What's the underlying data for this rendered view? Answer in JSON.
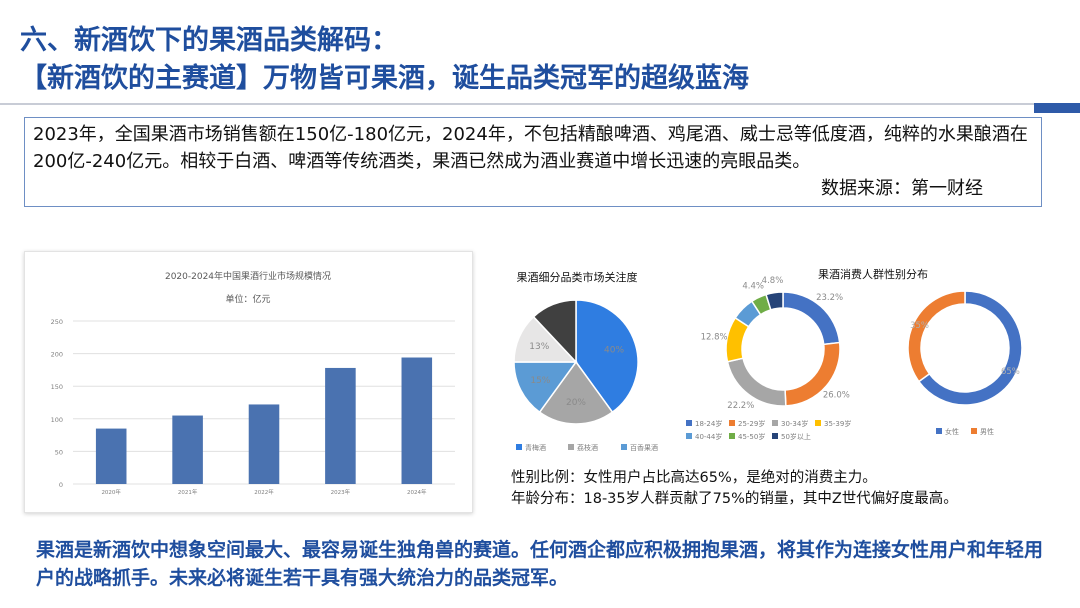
{
  "header": {
    "title_line1": "六、新酒饮下的果酒品类解码：",
    "title_line2": "【新酒饮的主赛道】万物皆可果酒，诞生品类冠军的超级蓝海"
  },
  "intro": {
    "text": "2023年，全国果酒市场销售额在150亿-180亿元，2024年，不包括精酿啤酒、鸡尾酒、威士忌等低度酒，纯粹的水果酿酒在200亿-240亿元。相较于白酒、啤酒等传统酒类，果酒已然成为酒业赛道中增长迅速的亮眼品类。",
    "source": "数据来源：第一财经"
  },
  "notes": {
    "gender": "性别比例：女性用户占比高达65%，是绝对的消费主力。",
    "age": "年龄分布：18-35岁人群贡献了75%的销量，其中Z世代偏好度最高。"
  },
  "conclusion": {
    "text": "果酒是新酒饮中想象空间最大、最容易诞生独角兽的赛道。任何酒企都应积极拥抱果酒，将其作为连接女性用户和年轻用户的战略抓手。未来必将诞生若干具有强大统治力的品类冠军。"
  },
  "colors": {
    "title": "#1f4e9e",
    "bar": "#4a72b0",
    "c_blue": "#2f7de1",
    "c_grey": "#a6a6a6",
    "c_lightblue": "#5b9bd5",
    "c_light": "#e7e6e6",
    "c_dark": "#404040",
    "c_orange": "#ed7d31",
    "c_yellow": "#ffc000",
    "c_green": "#70ad47",
    "c_navy": "#264478",
    "c_steel": "#4472c4"
  },
  "chart_data": [
    {
      "type": "bar",
      "title": "2020-2024年中国果酒行业市场规模情况",
      "subtitle": "单位：亿元",
      "categories": [
        "2020年",
        "2021年",
        "2022年",
        "2023年",
        "2024年"
      ],
      "values": [
        85,
        105,
        122,
        178,
        194
      ],
      "ylim": [
        0,
        250
      ],
      "yticks": [
        0,
        50,
        100,
        150,
        200,
        250
      ],
      "grid": true
    },
    {
      "type": "pie",
      "title": "果酒细分品类市场关注度",
      "labels": [
        "青梅酒",
        "荔枝酒",
        "百香果酒",
        "",
        ""
      ],
      "values": [
        40,
        20,
        15,
        13,
        12
      ],
      "value_labels": [
        "40%",
        "20%",
        "15%",
        "13%",
        ""
      ],
      "legend": "bottom"
    },
    {
      "type": "pie",
      "subtype": "donut",
      "title": "果酒消费人群性别分布",
      "labels": [
        "18-24岁",
        "25-29岁",
        "30-34岁",
        "35-39岁",
        "40-44岁",
        "45-50岁",
        "50岁以上"
      ],
      "values": [
        23.2,
        26.0,
        22.2,
        12.8,
        6.6,
        4.4,
        4.8
      ],
      "value_labels": [
        "23.2%",
        "26.0%",
        "22.2%",
        "12.8%",
        "",
        "4.4%",
        "4.8%"
      ],
      "legend": "bottom"
    },
    {
      "type": "pie",
      "subtype": "donut",
      "labels": [
        "女性",
        "男性"
      ],
      "values": [
        65,
        35
      ],
      "value_labels": [
        "65%",
        "35%"
      ],
      "legend": "bottom"
    }
  ]
}
